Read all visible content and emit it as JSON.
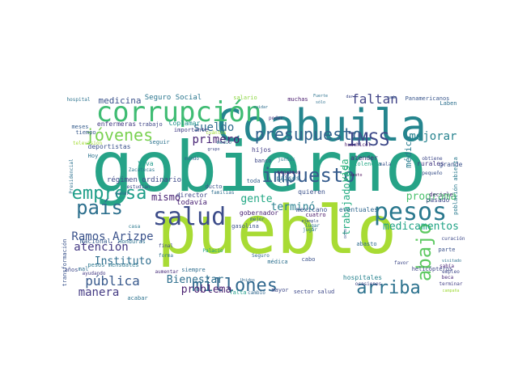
{
  "colors": {
    "background": "#ffffff",
    "palette": [
      "#440154",
      "#46327e",
      "#365c8d",
      "#277f8e",
      "#1fa187",
      "#4ac16d",
      "#a0da39",
      "#fde725"
    ]
  },
  "words": [
    {
      "text": "gobierno",
      "color": "#26a387"
    },
    {
      "text": "pueblo",
      "color": "#a8db34"
    },
    {
      "text": "Coahuila",
      "color": "#25858e"
    },
    {
      "text": "corrupción",
      "color": "#3fbc73"
    },
    {
      "text": "salud",
      "color": "#3d4d8a"
    },
    {
      "text": "pesos",
      "color": "#2a788e"
    },
    {
      "text": "impuesto",
      "color": "#365c8d"
    },
    {
      "text": "país",
      "color": "#2d708e"
    },
    {
      "text": "IMSS",
      "color": "#3e4989"
    },
    {
      "text": "presupuesto",
      "color": "#33628d"
    },
    {
      "text": "jóvenes",
      "color": "#7ad151"
    },
    {
      "text": "empresa",
      "color": "#1f9e89"
    },
    {
      "text": "abajo",
      "color": "#5ec962"
    },
    {
      "text": "millones",
      "color": "#31688e"
    },
    {
      "text": "arriba",
      "color": "#2c728e"
    },
    {
      "text": "faltan",
      "color": "#414487"
    },
    {
      "text": "sueldo",
      "color": "#2f6c8e"
    },
    {
      "text": "primero",
      "color": "#482475"
    },
    {
      "text": "mejorar",
      "color": "#26828e"
    },
    {
      "text": "medicamentos",
      "color": "#20a386"
    },
    {
      "text": "programa",
      "color": "#4ac16d"
    },
    {
      "text": "gente",
      "color": "#22a884"
    },
    {
      "text": "Ramos Arizpe",
      "color": "#3b528b"
    },
    {
      "text": "atención",
      "color": "#443983"
    },
    {
      "text": "Instituto",
      "color": "#2e6e8e"
    },
    {
      "text": "pública",
      "color": "#38598c"
    },
    {
      "text": "manera",
      "color": "#443a83"
    },
    {
      "text": "Bienestar",
      "color": "#2e6f8e"
    },
    {
      "text": "problema",
      "color": "#481f70"
    },
    {
      "text": "terminó",
      "color": "#277f8e"
    },
    {
      "text": "medicina",
      "color": "#3b528b"
    },
    {
      "text": "trabajadores",
      "color": "#25ac82"
    },
    {
      "text": "mismo",
      "color": "#482173"
    },
    {
      "text": "vida",
      "color": "#2db27d"
    },
    {
      "text": "médico",
      "color": "#287c8e"
    },
    {
      "text": "Seguro Social",
      "color": "#2a768e"
    },
    {
      "text": "salario",
      "color": "#8fd744"
    },
    {
      "text": "hospital",
      "color": "#2c738e"
    },
    {
      "text": "muchas",
      "color": "#481b6d"
    },
    {
      "text": "Panamericanos",
      "color": "#39568c"
    },
    {
      "text": "Laben",
      "color": "#2d708e"
    },
    {
      "text": "enfermeras",
      "color": "#443a83"
    },
    {
      "text": "trabajo",
      "color": "#404688"
    },
    {
      "text": "Coplamar",
      "color": "#20928c"
    },
    {
      "text": "deportistas",
      "color": "#3b528b"
    },
    {
      "text": "seguir",
      "color": "#2c728e"
    },
    {
      "text": "meses",
      "color": "#365d8d"
    },
    {
      "text": "tiempo",
      "color": "#38588c"
    },
    {
      "text": "televisión",
      "color": "#a5db36"
    },
    {
      "text": "importante",
      "color": "#433e85"
    },
    {
      "text": "poder",
      "color": "#472c7a"
    },
    {
      "text": "huachicol",
      "color": "#481769"
    },
    {
      "text": "hijos",
      "color": "#433e85"
    },
    {
      "text": "mundo",
      "color": "#31688e"
    },
    {
      "text": "banco",
      "color": "#3e4989"
    },
    {
      "text": "juntos",
      "color": "#2b758e"
    },
    {
      "text": "atender",
      "color": "#472d7b"
    },
    {
      "text": "violencia",
      "color": "#22a785"
    },
    {
      "text": "seguimos",
      "color": "#481b6d"
    },
    {
      "text": "países",
      "color": "#2b748e"
    },
    {
      "text": "rurales",
      "color": "#443983"
    },
    {
      "text": "grande",
      "color": "#3b528b"
    },
    {
      "text": "población abierta",
      "color": "#297a8e"
    },
    {
      "text": "Presidencial",
      "color": "#2d718e"
    },
    {
      "text": "Hoy",
      "color": "#2c738e"
    },
    {
      "text": "Viva",
      "color": "#1f9a8a"
    },
    {
      "text": "Zacatecas",
      "color": "#2a788e"
    },
    {
      "text": "todavía",
      "color": "#482173"
    },
    {
      "text": "director",
      "color": "#3f4889"
    },
    {
      "text": "familias",
      "color": "#2e6d8e"
    },
    {
      "text": "quieren",
      "color": "#3b528b"
    },
    {
      "text": "mexicano",
      "color": "#3b528b"
    },
    {
      "text": "eventuales",
      "color": "#31688e"
    },
    {
      "text": "pasado",
      "color": "#3e4989"
    },
    {
      "text": "decirle",
      "color": "#482979"
    },
    {
      "text": "régimen ordinario",
      "color": "#3e4a89"
    },
    {
      "text": "gobernador",
      "color": "#482071"
    },
    {
      "text": "cuatro",
      "color": "#471365"
    },
    {
      "text": "estudian",
      "color": "#3e4989"
    },
    {
      "text": "gasolina",
      "color": "#3b528b"
    },
    {
      "text": "años",
      "color": "#3e4989"
    },
    {
      "text": "pesos mensuales",
      "color": "#2a778e"
    },
    {
      "text": "abasto",
      "color": "#2f6b8e"
    },
    {
      "text": "helicópteros",
      "color": "#3f4788"
    },
    {
      "text": "parte",
      "color": "#3b528b"
    },
    {
      "text": "hospitales",
      "color": "#26828e"
    },
    {
      "text": "ocasiones",
      "color": "#404588"
    },
    {
      "text": "sabía",
      "color": "#482677"
    },
    {
      "text": "beca",
      "color": "#482878"
    },
    {
      "text": "empleo",
      "color": "#3f4788"
    },
    {
      "text": "terminar",
      "color": "#423f85"
    },
    {
      "text": "campaña",
      "color": "#a0da39"
    },
    {
      "text": "Nacional",
      "color": "#365c8d"
    },
    {
      "text": "Honduras",
      "color": "#2c718e"
    },
    {
      "text": "transformación",
      "color": "#3a538b"
    },
    {
      "text": "ayudando",
      "color": "#443983"
    },
    {
      "text": "acabar",
      "color": "#2c728e"
    },
    {
      "text": "aumentar",
      "color": "#472c7a"
    },
    {
      "text": "siempre",
      "color": "#2e6d8e"
    },
    {
      "text": "Seguro",
      "color": "#31688e"
    },
    {
      "text": "médica",
      "color": "#2d708e"
    },
    {
      "text": "cabo",
      "color": "#3b528b"
    },
    {
      "text": "mayor",
      "color": "#3e4989"
    },
    {
      "text": "sector salud",
      "color": "#3e4989"
    },
    {
      "text": "falta",
      "color": "#1f9e89"
    },
    {
      "text": "cambio",
      "color": "#31688e"
    },
    {
      "text": "Palacio",
      "color": "#1fa088"
    },
    {
      "text": "forma",
      "color": "#2c728e"
    },
    {
      "text": "final",
      "color": "#3e4a89"
    },
    {
      "text": "mal",
      "color": "#2e6d8e"
    },
    {
      "text": "ganar",
      "color": "#33628d"
    },
    {
      "text": "ducto",
      "color": "#3b528b"
    },
    {
      "text": "toda",
      "color": "#355f8d"
    },
    {
      "text": "creo",
      "color": "#2e6e8e"
    },
    {
      "text": "cuántos",
      "color": "#a0da39"
    },
    {
      "text": "medio",
      "color": "#2c728e"
    },
    {
      "text": "grupo",
      "color": "#3e4989"
    },
    {
      "text": "ejemplo",
      "color": "#3b528b"
    },
    {
      "text": "mejor",
      "color": "#34608d"
    },
    {
      "text": "obtiene",
      "color": "#3e4989"
    },
    {
      "text": "pequeño",
      "color": "#3b528b"
    },
    {
      "text": "jugar",
      "color": "#2a778e"
    },
    {
      "text": "lugar",
      "color": "#2b758e"
    },
    {
      "text": "costo",
      "color": "#440154"
    },
    {
      "text": "mala",
      "color": "#3b528b"
    },
    {
      "text": "favor",
      "color": "#3e4989"
    },
    {
      "text": "cada",
      "color": "#39568c"
    },
    {
      "text": "sólo",
      "color": "#2d708e"
    },
    {
      "text": "dar",
      "color": "#3e4989"
    },
    {
      "text": "Fuerte",
      "color": "#2c728e"
    },
    {
      "text": "cuidar",
      "color": "#2e6e8e"
    },
    {
      "text": "ocho",
      "color": "#3b528b"
    },
    {
      "text": "curación",
      "color": "#3e4989"
    },
    {
      "text": "visitado",
      "color": "#2c728e"
    },
    {
      "text": "Unidos",
      "color": "#31688e"
    },
    {
      "text": "casa",
      "color": "#2a788e"
    }
  ]
}
